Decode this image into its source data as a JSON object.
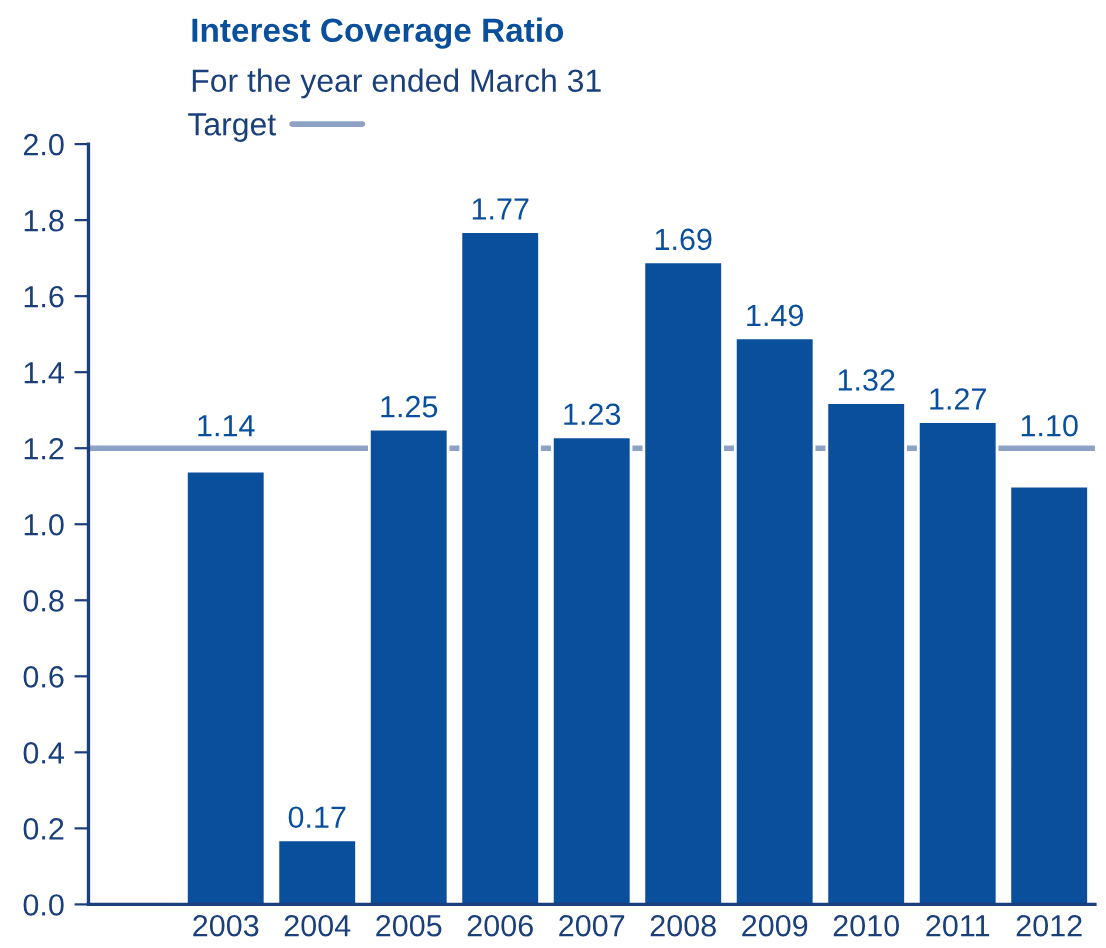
{
  "chart_data": {
    "type": "bar",
    "title": "Interest Coverage Ratio",
    "subtitle": "For the year ended March 31",
    "categories": [
      null,
      "2003",
      "2004",
      "2005",
      "2006",
      "2007",
      "2008",
      "2009",
      "2010",
      "2011",
      "2012"
    ],
    "series": [
      {
        "color": "#0a4f9c",
        "values": [
          null,
          1.14,
          0.17,
          1.25,
          1.77,
          1.23,
          1.69,
          1.49,
          1.32,
          1.27,
          1.1
        ],
        "value_labels": [
          null,
          "1.14",
          "0.17",
          "1.25",
          "1.77",
          "1.23",
          "1.69",
          "1.49",
          "1.32",
          "1.27",
          "1.10"
        ]
      }
    ],
    "ylim": [
      0,
      2.0
    ],
    "yticks": [
      {
        "value": 0,
        "label": "0.0"
      },
      {
        "value": 0.2,
        "label": "0.2"
      },
      {
        "value": 0.4,
        "label": "0.4"
      },
      {
        "value": 0.6,
        "label": "0.6"
      },
      {
        "value": 0.8,
        "label": "0.8"
      },
      {
        "value": 1.0,
        "label": "1.0"
      },
      {
        "value": 1.2,
        "label": "1.2"
      },
      {
        "value": 1.4,
        "label": "1.4"
      },
      {
        "value": 1.6,
        "label": "1.6"
      },
      {
        "value": 1.8,
        "label": "1.8"
      },
      {
        "value": 2.0,
        "label": "2.0"
      }
    ],
    "ref_lines": [
      {
        "axis": "y",
        "value": 1.2,
        "label": "Target",
        "color": "#8ea2c6",
        "line_style": "solid"
      }
    ],
    "legend": "top left",
    "grid": false
  }
}
